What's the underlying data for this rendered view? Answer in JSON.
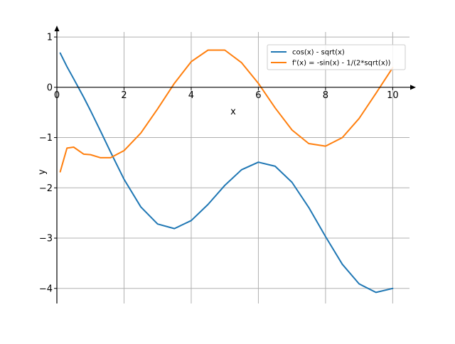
{
  "chart_data": {
    "type": "line",
    "title": "",
    "xlabel": "x",
    "ylabel": "y",
    "xlim": [
      0.0,
      10.5
    ],
    "ylim": [
      -4.3,
      1.1
    ],
    "grid": true,
    "legend_position": "top-right",
    "x_ticks": [
      0,
      2,
      4,
      6,
      8,
      10
    ],
    "x_tick_labels": [
      "0",
      "2",
      "4",
      "6",
      "8",
      "10"
    ],
    "y_ticks": [
      1,
      0,
      -1,
      -2,
      -3,
      -4
    ],
    "y_tick_labels": [
      "1",
      "0",
      "−1",
      "−2",
      "−3",
      "−4"
    ],
    "colors": {
      "series_1": "#1f77b4",
      "series_2": "#ff7f0e",
      "grid": "#b0b0b0",
      "axis": "#000000"
    },
    "x": [
      0.1,
      0.3,
      0.5,
      0.8,
      1.0,
      1.3,
      1.6,
      2.0,
      2.5,
      3.0,
      3.5,
      4.0,
      4.5,
      5.0,
      5.5,
      6.0,
      6.5,
      7.0,
      7.5,
      8.0,
      8.5,
      9.0,
      9.5,
      10.0
    ],
    "series": [
      {
        "name": "cos(x) - sqrt(x)",
        "values": [
          0.68,
          0.41,
          0.17,
          -0.2,
          -0.46,
          -0.87,
          -1.29,
          -1.83,
          -2.38,
          -2.72,
          -2.81,
          -2.65,
          -2.33,
          -1.95,
          -1.64,
          -1.49,
          -1.57,
          -1.89,
          -2.39,
          -2.97,
          -3.52,
          -3.91,
          -4.08,
          -4.0
        ]
      },
      {
        "name": "f'(x) = -sin(x) - 1/(2*sqrt(x))",
        "values": [
          -1.68,
          -1.21,
          -1.19,
          -1.33,
          -1.34,
          -1.4,
          -1.4,
          -1.26,
          -0.91,
          -0.43,
          0.08,
          0.51,
          0.74,
          0.74,
          0.49,
          0.08,
          -0.41,
          -0.85,
          -1.12,
          -1.17,
          -1.0,
          -0.62,
          -0.12,
          0.39
        ]
      }
    ]
  }
}
